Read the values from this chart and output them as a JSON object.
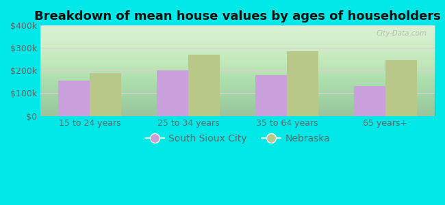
{
  "title": "Breakdown of mean house values by ages of householders",
  "categories": [
    "15 to 24 years",
    "25 to 34 years",
    "35 to 64 years",
    "65 years+"
  ],
  "series": {
    "South Sioux City": [
      155000,
      202000,
      180000,
      133000
    ],
    "Nebraska": [
      190000,
      270000,
      287000,
      247000
    ]
  },
  "bar_colors": {
    "South Sioux City": "#c9a0dc",
    "Nebraska": "#b8c888"
  },
  "ylim": [
    0,
    400000
  ],
  "yticks": [
    0,
    100000,
    200000,
    300000,
    400000
  ],
  "ytick_labels": [
    "$0",
    "$100k",
    "$200k",
    "$300k",
    "$400k"
  ],
  "plot_bg_top": "#f0fff0",
  "plot_bg_bottom": "#d0eec8",
  "outer_background": "#00e8e8",
  "bar_width": 0.32,
  "watermark": "City-Data.com",
  "title_fontsize": 13,
  "tick_fontsize": 9,
  "legend_fontsize": 10,
  "grid_color": "#e8c8d8",
  "tick_color": "#666666"
}
